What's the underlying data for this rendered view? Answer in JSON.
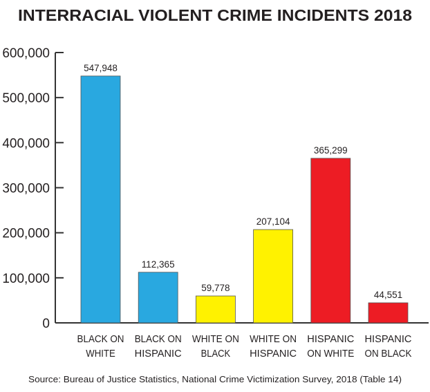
{
  "chart_data": {
    "type": "bar",
    "title": "INTERRACIAL VIOLENT CRIME INCIDENTS 2018",
    "categories": [
      [
        "BLACK ON",
        "WHITE"
      ],
      [
        "BLACK ON",
        "HISPANIC"
      ],
      [
        "WHITE ON",
        "BLACK"
      ],
      [
        "WHITE ON",
        "HISPANIC"
      ],
      [
        "HISPANIC",
        "ON WHITE"
      ],
      [
        "HISPANIC",
        "ON BLACK"
      ]
    ],
    "values": [
      547948,
      112365,
      59778,
      207104,
      365299,
      44551
    ],
    "value_labels": [
      "547,948",
      "112,365",
      "59,778",
      "207,104",
      "365,299",
      "44,551"
    ],
    "colors": [
      "#29a8e0",
      "#29a8e0",
      "#fff200",
      "#fff200",
      "#ed1c24",
      "#ed1c24"
    ],
    "ylim": [
      0,
      600000
    ],
    "yticks": [
      0,
      100000,
      200000,
      300000,
      400000,
      500000,
      600000
    ],
    "ytick_labels": [
      "0",
      "100,000",
      "200,000",
      "300,000",
      "400,000",
      "500,000",
      "600,000"
    ],
    "xlabel": "",
    "ylabel": "",
    "grid": false,
    "source": "Source: Bureau of Justice Statistics, National Crime Victimization Survey, 2018 (Table 14)"
  }
}
